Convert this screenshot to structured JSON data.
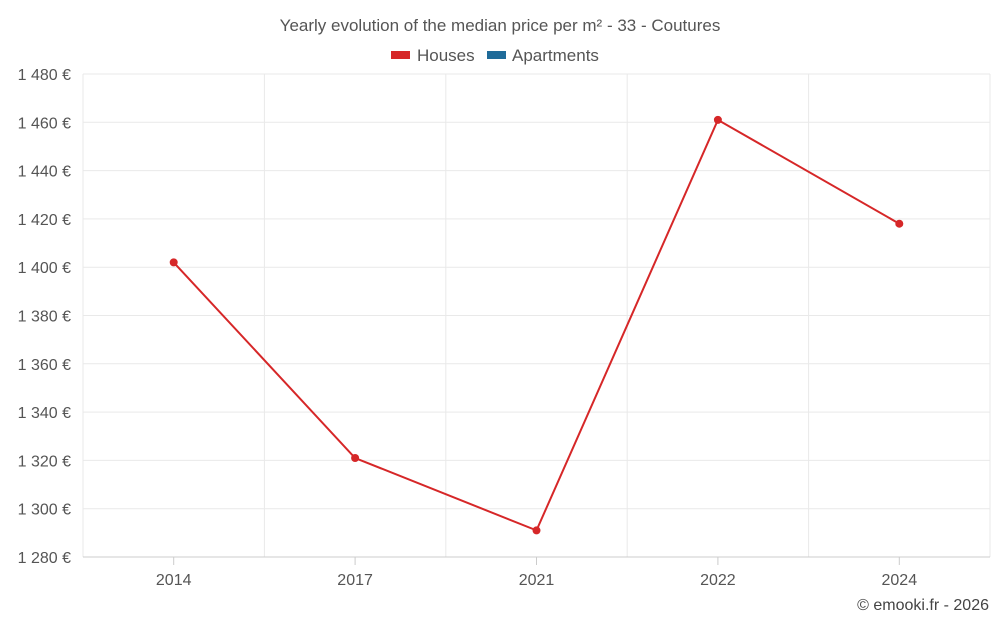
{
  "chart_data": {
    "type": "line",
    "title": "Yearly evolution of the median price per m² - 33 - Coutures",
    "categories": [
      "2014",
      "2017",
      "2021",
      "2022",
      "2024"
    ],
    "series": [
      {
        "name": "Houses",
        "color": "#d62728",
        "values": [
          1402,
          1321,
          1291,
          1461,
          1418
        ]
      },
      {
        "name": "Apartments",
        "color": "#1f6b99",
        "values": [
          null,
          null,
          null,
          null,
          null
        ]
      }
    ],
    "yticks": [
      "1 280 €",
      "1 300 €",
      "1 320 €",
      "1 340 €",
      "1 360 €",
      "1 380 €",
      "1 400 €",
      "1 420 €",
      "1 440 €",
      "1 460 €",
      "1 480 €"
    ],
    "ylim": [
      1280,
      1480
    ],
    "ytick_values": [
      1280,
      1300,
      1320,
      1340,
      1360,
      1380,
      1400,
      1420,
      1440,
      1460,
      1480
    ],
    "grid": true,
    "legend_position": "top-center"
  },
  "credit": "© emooki.fr - 2026"
}
